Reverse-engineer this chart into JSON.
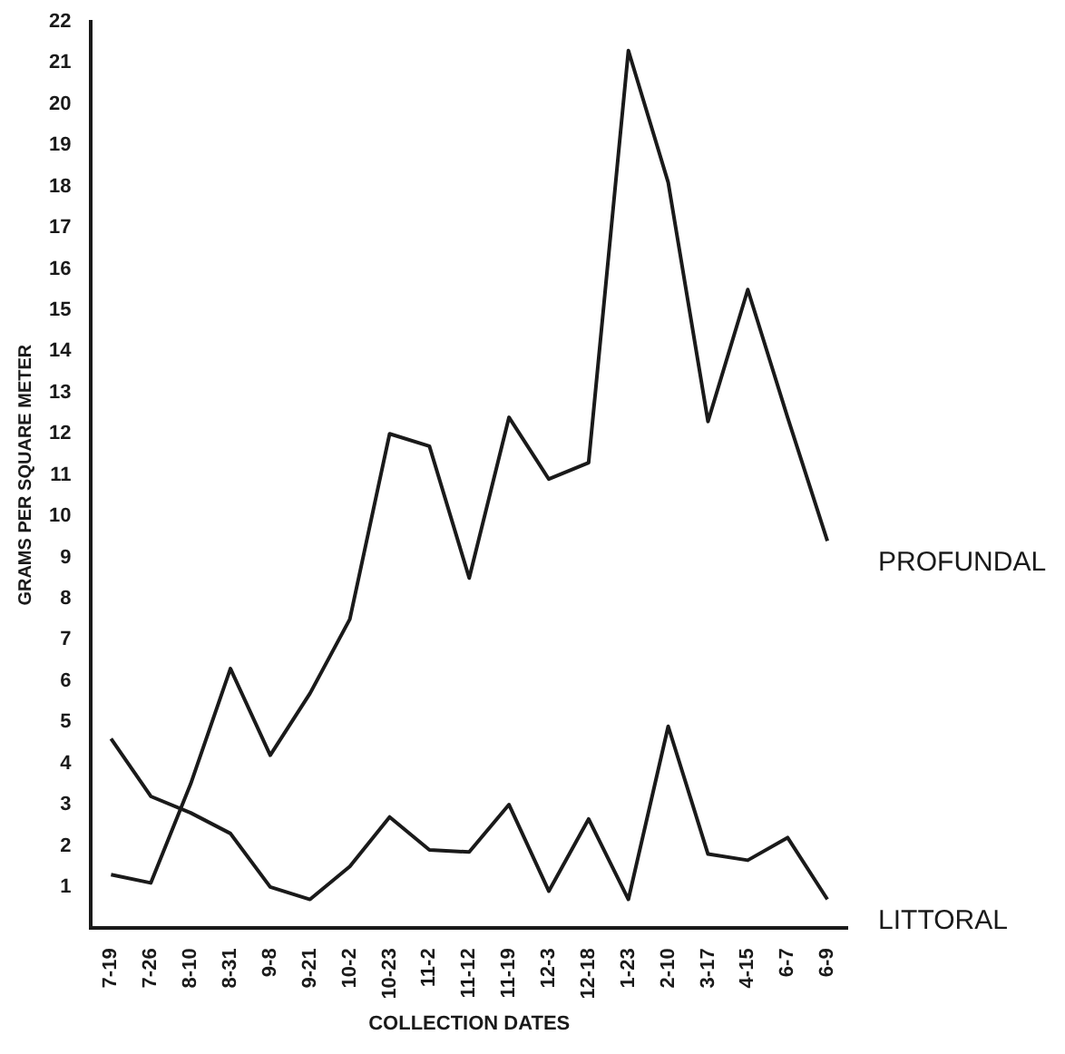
{
  "chart_data": {
    "type": "line",
    "xlabel": "COLLECTION DATES",
    "ylabel": "GRAMS PER SQUARE METER",
    "categories": [
      "7-19",
      "7-26",
      "8-10",
      "8-31",
      "9-8",
      "9-21",
      "10-2",
      "10-23",
      "11-2",
      "11-12",
      "11-19",
      "12-3",
      "12-18",
      "1-23",
      "2-10",
      "3-17",
      "4-15",
      "6-7",
      "6-9"
    ],
    "series": [
      {
        "name": "PROFUNDAL",
        "color": "#1a1a1a",
        "values": [
          1.3,
          1.1,
          3.5,
          6.3,
          4.2,
          5.7,
          7.5,
          12.0,
          11.7,
          8.5,
          12.4,
          10.9,
          11.3,
          21.3,
          18.1,
          12.3,
          15.5,
          12.4,
          9.4
        ]
      },
      {
        "name": "LITTORAL",
        "color": "#1a1a1a",
        "values": [
          4.6,
          3.2,
          2.8,
          2.3,
          1.0,
          0.7,
          1.5,
          2.7,
          1.9,
          1.85,
          3.0,
          0.9,
          2.65,
          0.7,
          4.9,
          1.8,
          1.65,
          2.2,
          0.7
        ]
      }
    ],
    "ylim": [
      0,
      22
    ],
    "yticks": [
      1,
      2,
      3,
      4,
      5,
      6,
      7,
      8,
      9,
      10,
      11,
      12,
      13,
      14,
      15,
      16,
      17,
      18,
      19,
      20,
      21,
      22
    ],
    "grid": false,
    "legend": false,
    "marker": "none",
    "line_style": "solid"
  }
}
